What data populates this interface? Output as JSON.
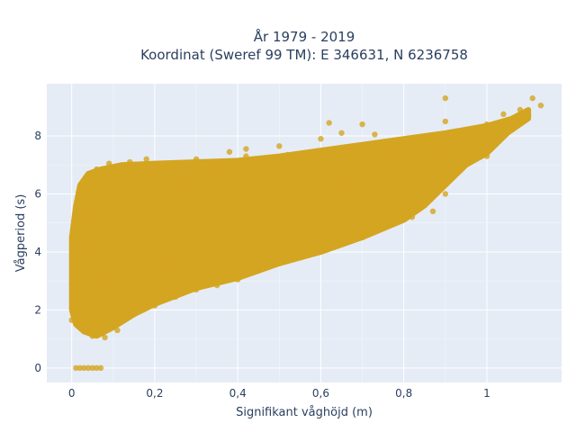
{
  "chart_data": {
    "type": "scatter",
    "title_lines": [
      "År 1979 - 2019",
      "Koordinat (Sweref 99 TM): E 346631, N 6236758"
    ],
    "xlabel": "Signifikant våghöjd (m)",
    "ylabel": "Vågperiod (s)",
    "xlim": [
      -0.06,
      1.18
    ],
    "ylim": [
      -0.5,
      9.8
    ],
    "x_ticks": [
      0,
      0.2,
      0.4,
      0.6,
      0.8,
      1
    ],
    "x_tick_labels": [
      "0",
      "0,2",
      "0,4",
      "0,6",
      "0,8",
      "1"
    ],
    "y_ticks": [
      0,
      2,
      4,
      6,
      8
    ],
    "y_tick_labels": [
      "0",
      "2",
      "4",
      "6",
      "8"
    ],
    "grid": true,
    "marker_color": "#D4A520",
    "background_color": "#E5ECF6",
    "points": [
      {
        "x": 0.0,
        "y": 1.65
      },
      {
        "x": 0.015,
        "y": 2.5
      },
      {
        "x": 0.015,
        "y": 3.5
      },
      {
        "x": 0.02,
        "y": 4.4
      },
      {
        "x": 0.03,
        "y": 5.5
      },
      {
        "x": 0.04,
        "y": 6.1
      },
      {
        "x": 0.05,
        "y": 6.5
      },
      {
        "x": 0.06,
        "y": 6.85
      },
      {
        "x": 0.07,
        "y": 6.7
      },
      {
        "x": 0.09,
        "y": 7.05
      },
      {
        "x": 0.11,
        "y": 6.7
      },
      {
        "x": 0.14,
        "y": 7.1
      },
      {
        "x": 0.18,
        "y": 7.2
      },
      {
        "x": 0.22,
        "y": 7.05
      },
      {
        "x": 0.3,
        "y": 7.2
      },
      {
        "x": 0.38,
        "y": 7.45
      },
      {
        "x": 0.42,
        "y": 7.3
      },
      {
        "x": 0.42,
        "y": 7.55
      },
      {
        "x": 0.5,
        "y": 7.65
      },
      {
        "x": 0.52,
        "y": 7.35
      },
      {
        "x": 0.6,
        "y": 7.9
      },
      {
        "x": 0.62,
        "y": 8.45
      },
      {
        "x": 0.65,
        "y": 8.1
      },
      {
        "x": 0.7,
        "y": 8.4
      },
      {
        "x": 0.73,
        "y": 8.05
      },
      {
        "x": 0.76,
        "y": 7.75
      },
      {
        "x": 0.85,
        "y": 7.95
      },
      {
        "x": 0.9,
        "y": 8.5
      },
      {
        "x": 0.9,
        "y": 9.3
      },
      {
        "x": 1.0,
        "y": 8.4
      },
      {
        "x": 1.04,
        "y": 8.75
      },
      {
        "x": 1.11,
        "y": 9.3
      },
      {
        "x": 1.13,
        "y": 9.05
      },
      {
        "x": 1.08,
        "y": 8.9
      },
      {
        "x": 1.1,
        "y": 8.7
      },
      {
        "x": 1.0,
        "y": 7.3
      },
      {
        "x": 0.98,
        "y": 7.8
      },
      {
        "x": 0.93,
        "y": 6.8
      },
      {
        "x": 0.9,
        "y": 6.0
      },
      {
        "x": 0.87,
        "y": 5.4
      },
      {
        "x": 0.82,
        "y": 5.2
      },
      {
        "x": 0.8,
        "y": 5.6
      },
      {
        "x": 0.75,
        "y": 4.9
      },
      {
        "x": 0.7,
        "y": 4.5
      },
      {
        "x": 0.64,
        "y": 4.35
      },
      {
        "x": 0.6,
        "y": 4.0
      },
      {
        "x": 0.55,
        "y": 3.8
      },
      {
        "x": 0.5,
        "y": 3.6
      },
      {
        "x": 0.45,
        "y": 3.35
      },
      {
        "x": 0.4,
        "y": 3.05
      },
      {
        "x": 0.35,
        "y": 2.85
      },
      {
        "x": 0.3,
        "y": 2.7
      },
      {
        "x": 0.25,
        "y": 2.45
      },
      {
        "x": 0.2,
        "y": 2.15
      },
      {
        "x": 0.15,
        "y": 1.85
      },
      {
        "x": 0.11,
        "y": 1.3
      },
      {
        "x": 0.08,
        "y": 1.05
      },
      {
        "x": 0.05,
        "y": 1.1
      },
      {
        "x": 0.035,
        "y": 1.3
      },
      {
        "x": 0.025,
        "y": 1.6
      },
      {
        "x": 0.02,
        "y": 2.0
      },
      {
        "x": 0.025,
        "y": 3.0
      },
      {
        "x": 0.03,
        "y": 4.0
      },
      {
        "x": 0.045,
        "y": 5.0
      },
      {
        "x": 0.1,
        "y": 4.0
      },
      {
        "x": 0.15,
        "y": 3.2
      },
      {
        "x": 0.2,
        "y": 4.5
      },
      {
        "x": 0.25,
        "y": 5.5
      },
      {
        "x": 0.3,
        "y": 4.0
      },
      {
        "x": 0.35,
        "y": 5.0
      },
      {
        "x": 0.4,
        "y": 6.0
      },
      {
        "x": 0.45,
        "y": 4.8
      },
      {
        "x": 0.5,
        "y": 5.8
      },
      {
        "x": 0.55,
        "y": 6.6
      },
      {
        "x": 0.6,
        "y": 5.5
      },
      {
        "x": 0.65,
        "y": 6.3
      },
      {
        "x": 0.7,
        "y": 7.0
      },
      {
        "x": 0.75,
        "y": 6.2
      },
      {
        "x": 0.8,
        "y": 7.0
      },
      {
        "x": 0.85,
        "y": 6.6
      },
      {
        "x": 0.88,
        "y": 7.4
      },
      {
        "x": 0.95,
        "y": 7.6
      },
      {
        "x": 0.12,
        "y": 5.6
      },
      {
        "x": 0.18,
        "y": 6.2
      },
      {
        "x": 0.28,
        "y": 6.5
      },
      {
        "x": 0.36,
        "y": 6.7
      },
      {
        "x": 0.08,
        "y": 3.0
      },
      {
        "x": 0.06,
        "y": 2.0
      },
      {
        "x": 0.1,
        "y": 2.4
      },
      {
        "x": 0.14,
        "y": 4.6
      },
      {
        "x": 0.22,
        "y": 3.4
      },
      {
        "x": 0.47,
        "y": 6.9
      },
      {
        "x": 0.58,
        "y": 7.2
      },
      {
        "x": 0.68,
        "y": 7.6
      },
      {
        "x": 0.78,
        "y": 7.3
      },
      {
        "x": 0.92,
        "y": 8.0
      },
      {
        "x": 0.01,
        "y": 0.0
      },
      {
        "x": 0.02,
        "y": 0.0
      },
      {
        "x": 0.03,
        "y": 0.0
      },
      {
        "x": 0.04,
        "y": 0.0
      },
      {
        "x": 0.05,
        "y": 0.0
      },
      {
        "x": 0.06,
        "y": 0.0
      },
      {
        "x": 0.07,
        "y": 0.0
      }
    ]
  }
}
